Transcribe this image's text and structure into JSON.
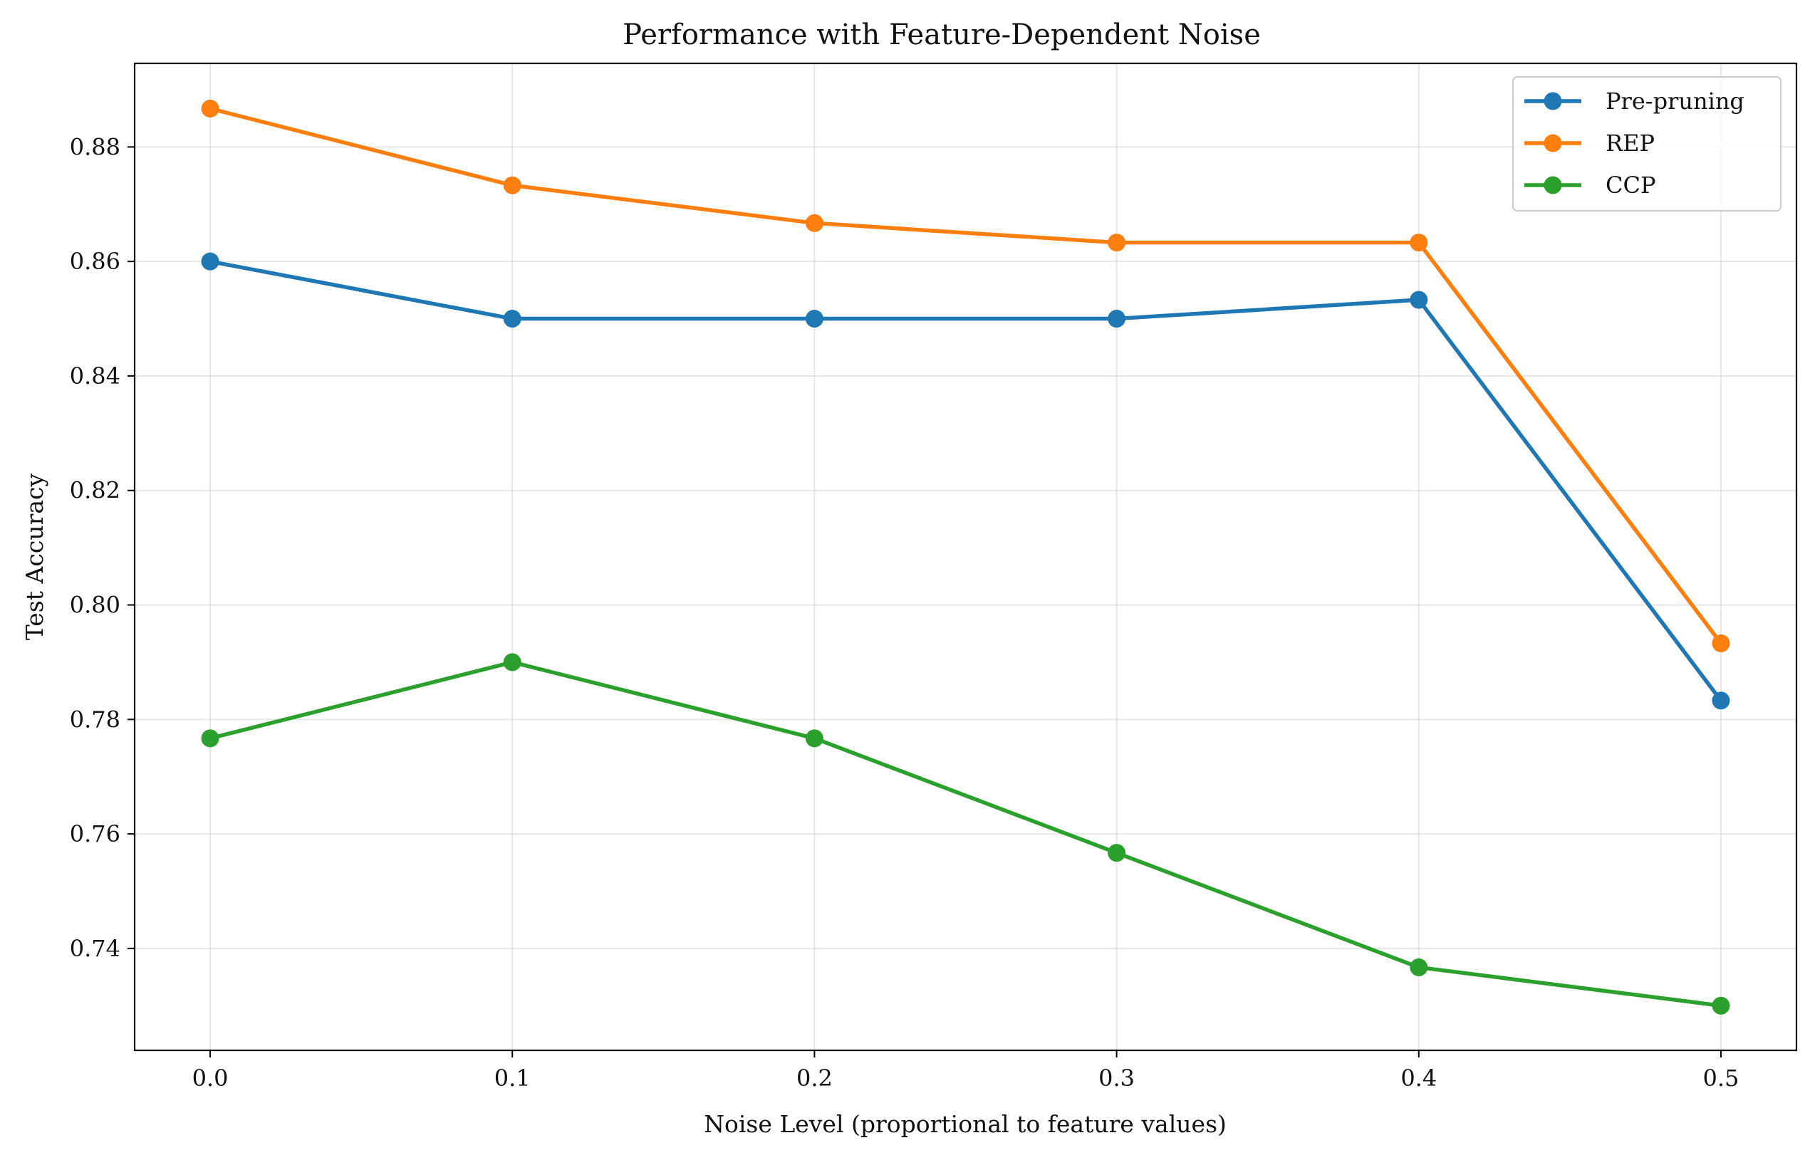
{
  "chart_data": {
    "type": "line",
    "title": "Performance with Feature-Dependent Noise",
    "xlabel": "Noise Level (proportional to feature values)",
    "ylabel": "Test Accuracy",
    "x": [
      0.0,
      0.1,
      0.2,
      0.3,
      0.4,
      0.5
    ],
    "x_tick_labels": [
      "0.0",
      "0.1",
      "0.2",
      "0.3",
      "0.4",
      "0.5"
    ],
    "y_ticks": [
      0.74,
      0.76,
      0.78,
      0.8,
      0.82,
      0.84,
      0.86,
      0.88
    ],
    "y_tick_labels": [
      "0.74",
      "0.76",
      "0.78",
      "0.80",
      "0.82",
      "0.84",
      "0.86",
      "0.88"
    ],
    "xlim": [
      -0.025,
      0.525
    ],
    "ylim": [
      0.7222,
      0.8946
    ],
    "grid": true,
    "legend_position": "top-right",
    "series": [
      {
        "name": "Pre-pruning",
        "color": "#1f77b4",
        "values": [
          0.86,
          0.85,
          0.85,
          0.85,
          0.8533,
          0.7833
        ]
      },
      {
        "name": "REP",
        "color": "#ff7f0e",
        "values": [
          0.8867,
          0.8733,
          0.8667,
          0.8633,
          0.8633,
          0.7933
        ]
      },
      {
        "name": "CCP",
        "color": "#2ca02c",
        "values": [
          0.7767,
          0.79,
          0.7767,
          0.7567,
          0.7367,
          0.73
        ]
      }
    ]
  }
}
